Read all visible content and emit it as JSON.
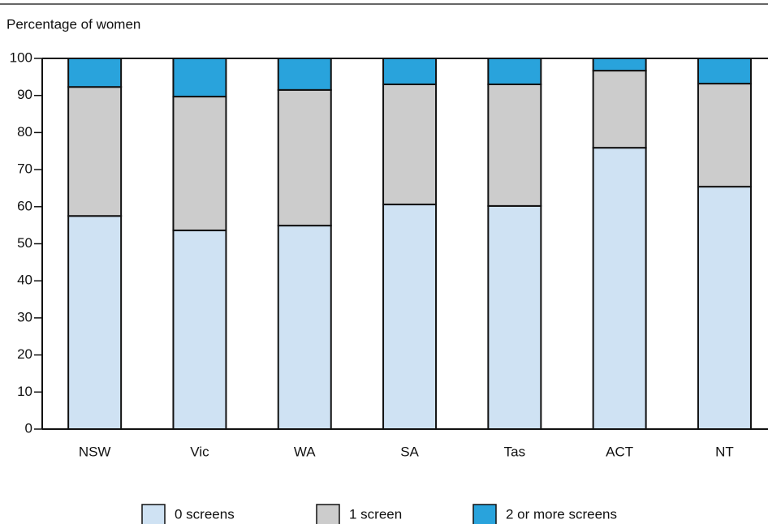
{
  "chart_data": {
    "type": "stacked_bar",
    "title": "Percentage of women",
    "categories": [
      "NSW",
      "Vic",
      "WA",
      "SA",
      "Tas",
      "ACT",
      "NT"
    ],
    "series": [
      {
        "name": "0 screens",
        "color": "#cfe2f3",
        "values": [
          57.5,
          53.6,
          54.9,
          60.6,
          60.2,
          75.9,
          65.4
        ]
      },
      {
        "name": "1 screen",
        "color": "#cccccc",
        "values": [
          34.8,
          36.1,
          36.6,
          32.4,
          32.8,
          20.8,
          27.8
        ]
      },
      {
        "name": "2 or more screens",
        "color": "#29a3dc",
        "values": [
          7.7,
          10.3,
          8.5,
          7.0,
          7.0,
          3.3,
          6.8
        ]
      }
    ],
    "ylim": [
      0,
      100
    ],
    "yticks": [
      0,
      10,
      20,
      30,
      40,
      50,
      60,
      70,
      80,
      90,
      100
    ],
    "grid": false,
    "legend": "bottom"
  }
}
